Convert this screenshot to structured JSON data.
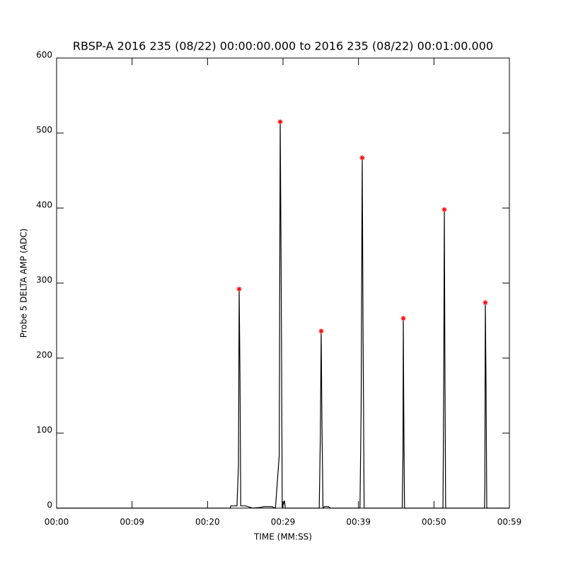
{
  "chart_data": {
    "type": "line",
    "title": "RBSP-A 2016 235 (08/22) 00:00:00.000 to 2016 235 (08/22) 00:01:00.000",
    "xlabel": "TIME (MM:SS)",
    "ylabel": "Probe 5 DELTA AMP (ADC)",
    "xlim": [
      0,
      60
    ],
    "xticks": [
      {
        "value": 0,
        "label": "00:00"
      },
      {
        "value": 10,
        "label": "00:09"
      },
      {
        "value": 20,
        "label": "00:20"
      },
      {
        "value": 30,
        "label": "00:29"
      },
      {
        "value": 40,
        "label": "00:39"
      },
      {
        "value": 50,
        "label": "00:50"
      },
      {
        "value": 60,
        "label": "00:59"
      }
    ],
    "ylim": [
      0,
      600
    ],
    "yticks": [
      0,
      100,
      200,
      300,
      400,
      500,
      600
    ],
    "grid": false,
    "series": [
      {
        "color": "#000000",
        "x": [
          0,
          23,
          23.1,
          23.9,
          24.1,
          24.19,
          24.3,
          24.4,
          25,
          26,
          27,
          27.5,
          28.5,
          29,
          29.5,
          29.63,
          29.75,
          29.9,
          30.2,
          30.3,
          34.8,
          34.95,
          35.06,
          35.15,
          35.3,
          35.5,
          36,
          36.3,
          40.2,
          40.35,
          40.5,
          40.6,
          40.75,
          45.8,
          45.9,
          45.94,
          46.0,
          46.1,
          51.2,
          51.3,
          51.38,
          51.45,
          51.55,
          56.7,
          56.75,
          56.81,
          56.9,
          57,
          60
        ],
        "values": [
          0,
          0,
          3,
          3,
          57,
          292,
          175,
          3,
          3,
          0,
          1,
          2,
          2,
          0,
          70,
          515,
          327,
          0,
          10,
          0,
          0,
          97,
          236,
          122,
          0,
          2,
          2,
          0,
          0,
          130,
          467,
          251,
          0,
          0,
          72,
          253,
          134,
          0,
          0,
          168,
          398,
          202,
          0,
          0,
          30,
          274,
          170,
          0,
          0
        ]
      },
      {
        "color": "#ff0000",
        "marker": "asterisk",
        "x": [
          24.19,
          29.63,
          35.06,
          40.5,
          45.94,
          51.38,
          56.81
        ],
        "values": [
          292,
          515,
          236,
          467,
          253,
          398,
          274
        ]
      }
    ]
  }
}
